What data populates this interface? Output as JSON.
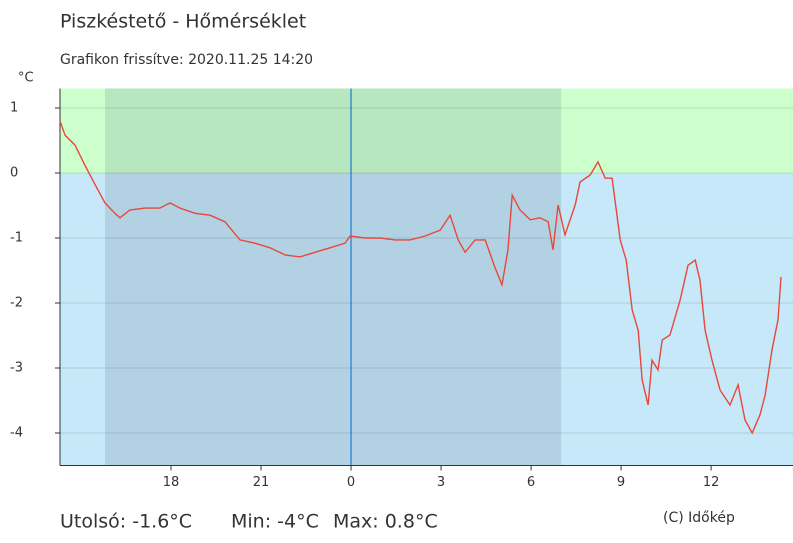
{
  "chart_data": {
    "type": "line",
    "title": "Piszkéstető - Hőmérséklet",
    "subtitle": "Grafikon frissítve: 2020.11.25 14:20",
    "y_unit": "°C",
    "footer": [
      "Utolsó: -1.6°C",
      "Min: -4°C",
      "Max: 0.8°C"
    ],
    "credit": "(C) Időkép",
    "color": "#e8473a",
    "above_zero_color": "#ccffcc",
    "below_zero_color": "#c6e8f8",
    "shade_color": "rgba(30,60,90,0.12)",
    "shaded_x": [
      15.8,
      31.0
    ],
    "vline_x": 24,
    "vline_color": "#3a8fd6",
    "xlim": [
      14.3,
      38.73
    ],
    "ylim": [
      -4.5,
      1.3
    ],
    "xticks": [
      18,
      21,
      {
        "value": 24,
        "label": "0"
      },
      {
        "value": 27,
        "label": "3"
      },
      {
        "value": 30,
        "label": "6"
      },
      {
        "value": 33,
        "label": "9"
      },
      {
        "value": 36,
        "label": "12"
      }
    ],
    "yticks": [
      -4,
      -3,
      -2,
      -1,
      0,
      1
    ],
    "x": [
      14.3,
      14.47,
      14.8,
      15.13,
      15.47,
      15.8,
      16.13,
      16.3,
      16.63,
      17.13,
      17.63,
      17.97,
      18.3,
      18.8,
      19.3,
      19.8,
      20.3,
      20.8,
      21.3,
      21.8,
      22.3,
      22.8,
      23.3,
      23.8,
      23.97,
      24.47,
      24.97,
      25.47,
      25.97,
      26.47,
      26.97,
      27.3,
      27.57,
      27.8,
      28.13,
      28.47,
      28.8,
      29.03,
      29.23,
      29.37,
      29.63,
      29.97,
      30.3,
      30.57,
      30.73,
      30.9,
      31.13,
      31.47,
      31.63,
      31.97,
      32.23,
      32.47,
      32.7,
      32.97,
      33.17,
      33.37,
      33.57,
      33.7,
      33.9,
      34.03,
      34.23,
      34.37,
      34.63,
      34.97,
      35.23,
      35.47,
      35.63,
      35.8,
      36.03,
      36.3,
      36.63,
      36.9,
      37.13,
      37.37,
      37.63,
      37.8,
      38.03,
      38.23,
      38.33
    ],
    "values": [
      0.8,
      0.58,
      0.43,
      0.12,
      -0.18,
      -0.46,
      -0.62,
      -0.69,
      -0.57,
      -0.54,
      -0.54,
      -0.46,
      -0.54,
      -0.62,
      -0.65,
      -0.75,
      -1.03,
      -1.08,
      -1.15,
      -1.26,
      -1.29,
      -1.22,
      -1.15,
      -1.08,
      -0.97,
      -1.0,
      -1.0,
      -1.03,
      -1.03,
      -0.97,
      -0.88,
      -0.65,
      -1.03,
      -1.22,
      -1.03,
      -1.03,
      -1.46,
      -1.72,
      -1.18,
      -0.34,
      -0.57,
      -0.72,
      -0.69,
      -0.75,
      -1.18,
      -0.49,
      -0.95,
      -0.49,
      -0.14,
      -0.03,
      0.17,
      -0.08,
      -0.08,
      -1.03,
      -1.34,
      -2.11,
      -2.42,
      -3.18,
      -3.57,
      -2.88,
      -3.03,
      -2.57,
      -2.49,
      -1.95,
      -1.42,
      -1.34,
      -1.65,
      -2.42,
      -2.88,
      -3.34,
      -3.57,
      -3.26,
      -3.8,
      -4.0,
      -3.72,
      -3.42,
      -2.72,
      -2.26,
      -1.6
    ]
  }
}
